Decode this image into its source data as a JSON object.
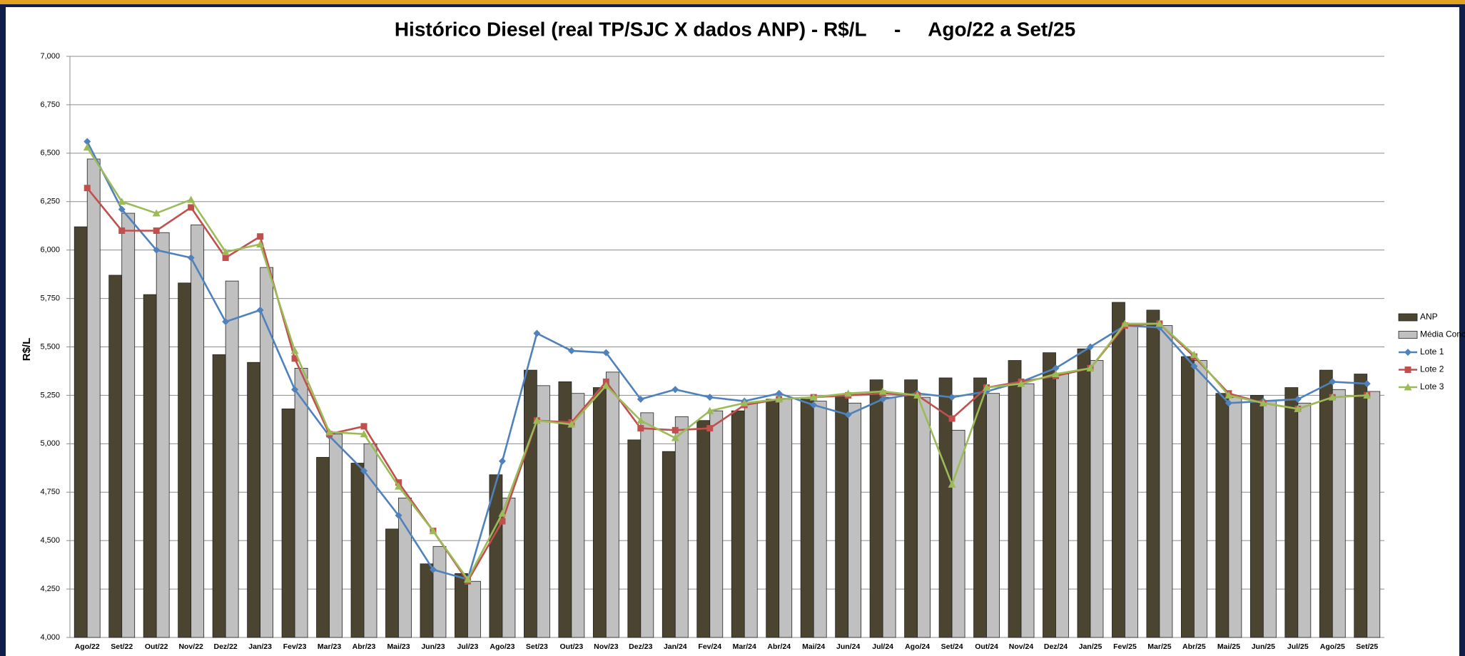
{
  "chart_data": {
    "type": "bar_line",
    "title": "Histórico Diesel (real TP/SJC X dados ANP) - R$/L     -     Ago/22 a Set/25",
    "y_label": "R$/L",
    "categories": [
      "Ago/22",
      "Set/22",
      "Out/22",
      "Nov/22",
      "Dez/22",
      "Jan/23",
      "Fev/23",
      "Mar/23",
      "Abr/23",
      "Mai/23",
      "Jun/23",
      "Jul/23",
      "Ago/23",
      "Set/23",
      "Out/23",
      "Nov/23",
      "Dez/23",
      "Jan/24",
      "Fev/24",
      "Mar/24",
      "Abr/24",
      "Mai/24",
      "Jun/24",
      "Jul/24",
      "Ago/24",
      "Set/24",
      "Out/24",
      "Nov/24",
      "Dez/24",
      "Jan/25",
      "Fev/25",
      "Mar/25",
      "Abr/25",
      "Mai/25",
      "Jun/25",
      "Jul/25",
      "Ago/25",
      "Set/25"
    ],
    "series": [
      {
        "name": "ANP",
        "kind": "bar",
        "color": "#4a4430",
        "values": [
          6.12,
          5.87,
          5.77,
          5.83,
          5.46,
          5.42,
          5.18,
          4.93,
          4.9,
          4.56,
          4.38,
          4.33,
          4.84,
          5.38,
          5.32,
          5.29,
          5.02,
          4.96,
          5.12,
          5.17,
          5.23,
          5.23,
          5.25,
          5.33,
          5.33,
          5.34,
          5.34,
          5.43,
          5.47,
          5.49,
          5.73,
          5.69,
          5.45,
          5.26,
          5.25,
          5.29,
          5.38,
          5.36
        ]
      },
      {
        "name": "Média Conc",
        "kind": "bar",
        "color": "#c0c0c0",
        "values": [
          6.47,
          6.19,
          6.09,
          6.13,
          5.84,
          5.91,
          5.39,
          5.05,
          5.0,
          4.72,
          4.47,
          4.29,
          4.72,
          5.3,
          5.26,
          5.37,
          5.16,
          5.14,
          5.17,
          5.21,
          5.23,
          5.22,
          5.21,
          5.24,
          5.24,
          5.07,
          5.26,
          5.31,
          5.36,
          5.43,
          5.62,
          5.61,
          5.43,
          5.24,
          5.22,
          5.21,
          5.28,
          5.27
        ]
      },
      {
        "name": "Lote 1",
        "kind": "line",
        "marker": "diamond",
        "color": "#4f81bd",
        "values": [
          6.56,
          6.21,
          6.0,
          5.96,
          5.63,
          5.69,
          5.28,
          5.04,
          4.86,
          4.63,
          4.35,
          4.3,
          4.91,
          5.57,
          5.48,
          5.47,
          5.23,
          5.28,
          5.24,
          5.22,
          5.26,
          5.2,
          5.15,
          5.23,
          5.26,
          5.24,
          5.27,
          5.32,
          5.39,
          5.5,
          5.61,
          5.6,
          5.4,
          5.21,
          5.22,
          5.23,
          5.32,
          5.31
        ]
      },
      {
        "name": "Lote 2",
        "kind": "line",
        "marker": "square",
        "color": "#c0504d",
        "values": [
          6.32,
          6.1,
          6.1,
          6.22,
          5.96,
          6.07,
          5.44,
          5.05,
          5.09,
          4.8,
          4.55,
          4.29,
          4.6,
          5.12,
          5.11,
          5.32,
          5.08,
          5.07,
          5.08,
          5.2,
          5.23,
          5.24,
          5.25,
          5.26,
          5.25,
          5.13,
          5.29,
          5.32,
          5.35,
          5.39,
          5.61,
          5.62,
          5.45,
          5.26,
          5.21,
          5.18,
          5.24,
          5.25
        ]
      },
      {
        "name": "Lote 3",
        "kind": "line",
        "marker": "triangle",
        "color": "#9bbb59",
        "values": [
          6.53,
          6.25,
          6.19,
          6.26,
          5.99,
          6.03,
          5.48,
          5.06,
          5.05,
          4.78,
          4.55,
          4.3,
          4.64,
          5.12,
          5.1,
          5.3,
          5.12,
          5.03,
          5.17,
          5.21,
          5.23,
          5.24,
          5.26,
          5.27,
          5.25,
          4.79,
          5.29,
          5.31,
          5.36,
          5.39,
          5.62,
          5.62,
          5.46,
          5.25,
          5.21,
          5.18,
          5.24,
          5.25
        ]
      }
    ],
    "ylim": [
      4,
      7
    ],
    "yticks": [
      {
        "value": 4,
        "label": "4,000"
      },
      {
        "value": 4.25,
        "label": "4,250"
      },
      {
        "value": 4.5,
        "label": "4,500"
      },
      {
        "value": 4.75,
        "label": "4,750"
      },
      {
        "value": 5,
        "label": "5,000"
      },
      {
        "value": 5.25,
        "label": "5,250"
      },
      {
        "value": 5.5,
        "label": "5,500"
      },
      {
        "value": 5.75,
        "label": "5,750"
      },
      {
        "value": 6,
        "label": "6,000"
      },
      {
        "value": 6.25,
        "label": "6,250"
      },
      {
        "value": 6.5,
        "label": "6,500"
      },
      {
        "value": 6.75,
        "label": "6,750"
      },
      {
        "value": 7,
        "label": "7,000"
      }
    ],
    "grid": true,
    "legend": "right"
  }
}
